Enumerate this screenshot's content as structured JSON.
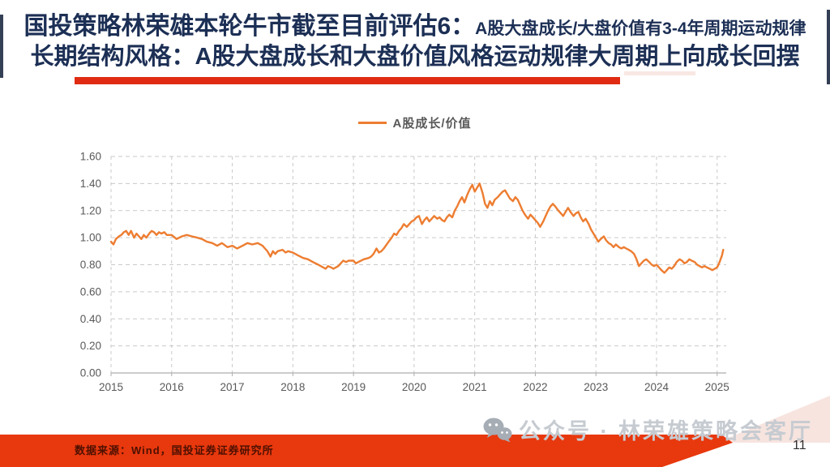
{
  "slide": {
    "title_line1_main": "国投策略林荣雄本轮牛市截至目前评估6：",
    "title_line1_sub": "A股大盘成长/大盘价值有3-4年周期运动规律",
    "title_line2": "长期结构风格：A股大盘成长和大盘价值风格运动规律大周期上向成长回摆",
    "footer_source": "数据来源：Wind，国投证券证券研究所",
    "watermark_text": "公众号 · 林荣雄策略会客厅",
    "page_number": "11",
    "colors": {
      "title_navy": "#1c2f55",
      "accent_red": "#E02B12",
      "footer_red": "#E8380D",
      "footer_pink": "#F7E4DF",
      "line_orange": "#ED7D31",
      "axis_text_gray": "#595959",
      "gridline_gray": "#C9C9C9",
      "axis_line_gray": "#ADADAD",
      "watermark_gray": "#c6cbd1"
    }
  },
  "chart_data": {
    "type": "line",
    "title": "",
    "xlabel": "",
    "ylabel": "",
    "legend_position": "top-center",
    "grid": "dashed-both-axes",
    "ylim": [
      0,
      1.6
    ],
    "xlim": [
      2015,
      2025.15
    ],
    "y_ticks": [
      0,
      0.2,
      0.4,
      0.6,
      0.8,
      1.0,
      1.2,
      1.4,
      1.6
    ],
    "y_tick_labels": [
      "0.00",
      "0.20",
      "0.40",
      "0.60",
      "0.80",
      "1.00",
      "1.20",
      "1.40",
      "1.60"
    ],
    "x_ticks": [
      2015,
      2016,
      2017,
      2018,
      2019,
      2020,
      2021,
      2022,
      2023,
      2024,
      2025
    ],
    "x_tick_labels": [
      "2015",
      "2016",
      "2017",
      "2018",
      "2019",
      "2020",
      "2021",
      "2022",
      "2023",
      "2024",
      "2025"
    ],
    "series": [
      {
        "name": "A股成长/价值",
        "color": "#ED7D31",
        "points": [
          [
            2015.0,
            0.97
          ],
          [
            2015.04,
            0.95
          ],
          [
            2015.08,
            0.99
          ],
          [
            2015.13,
            1.01
          ],
          [
            2015.17,
            1.02
          ],
          [
            2015.21,
            1.04
          ],
          [
            2015.25,
            1.05
          ],
          [
            2015.29,
            1.02
          ],
          [
            2015.33,
            1.05
          ],
          [
            2015.38,
            1.0
          ],
          [
            2015.42,
            1.03
          ],
          [
            2015.46,
            1.01
          ],
          [
            2015.5,
            0.99
          ],
          [
            2015.54,
            1.02
          ],
          [
            2015.58,
            1.0
          ],
          [
            2015.63,
            1.03
          ],
          [
            2015.67,
            1.05
          ],
          [
            2015.71,
            1.04
          ],
          [
            2015.75,
            1.02
          ],
          [
            2015.79,
            1.04
          ],
          [
            2015.83,
            1.03
          ],
          [
            2015.88,
            1.04
          ],
          [
            2015.92,
            1.02
          ],
          [
            2015.96,
            1.02
          ],
          [
            2016.0,
            1.02
          ],
          [
            2016.08,
            0.99
          ],
          [
            2016.17,
            1.01
          ],
          [
            2016.25,
            1.02
          ],
          [
            2016.33,
            1.01
          ],
          [
            2016.42,
            1.0
          ],
          [
            2016.5,
            0.99
          ],
          [
            2016.58,
            0.97
          ],
          [
            2016.67,
            0.96
          ],
          [
            2016.75,
            0.94
          ],
          [
            2016.83,
            0.96
          ],
          [
            2016.92,
            0.93
          ],
          [
            2017.0,
            0.94
          ],
          [
            2017.08,
            0.92
          ],
          [
            2017.17,
            0.94
          ],
          [
            2017.25,
            0.96
          ],
          [
            2017.33,
            0.95
          ],
          [
            2017.42,
            0.96
          ],
          [
            2017.5,
            0.94
          ],
          [
            2017.54,
            0.92
          ],
          [
            2017.58,
            0.9
          ],
          [
            2017.63,
            0.86
          ],
          [
            2017.67,
            0.9
          ],
          [
            2017.71,
            0.88
          ],
          [
            2017.75,
            0.9
          ],
          [
            2017.83,
            0.91
          ],
          [
            2017.88,
            0.89
          ],
          [
            2017.92,
            0.9
          ],
          [
            2018.0,
            0.89
          ],
          [
            2018.08,
            0.87
          ],
          [
            2018.17,
            0.85
          ],
          [
            2018.25,
            0.84
          ],
          [
            2018.33,
            0.82
          ],
          [
            2018.42,
            0.8
          ],
          [
            2018.46,
            0.79
          ],
          [
            2018.5,
            0.78
          ],
          [
            2018.54,
            0.77
          ],
          [
            2018.58,
            0.79
          ],
          [
            2018.63,
            0.78
          ],
          [
            2018.67,
            0.77
          ],
          [
            2018.71,
            0.78
          ],
          [
            2018.75,
            0.79
          ],
          [
            2018.79,
            0.81
          ],
          [
            2018.83,
            0.83
          ],
          [
            2018.88,
            0.82
          ],
          [
            2018.92,
            0.83
          ],
          [
            2019.0,
            0.83
          ],
          [
            2019.04,
            0.81
          ],
          [
            2019.08,
            0.82
          ],
          [
            2019.17,
            0.84
          ],
          [
            2019.25,
            0.85
          ],
          [
            2019.29,
            0.86
          ],
          [
            2019.33,
            0.88
          ],
          [
            2019.38,
            0.92
          ],
          [
            2019.42,
            0.89
          ],
          [
            2019.46,
            0.9
          ],
          [
            2019.5,
            0.92
          ],
          [
            2019.58,
            0.97
          ],
          [
            2019.63,
            1.0
          ],
          [
            2019.67,
            1.03
          ],
          [
            2019.71,
            1.02
          ],
          [
            2019.75,
            1.05
          ],
          [
            2019.79,
            1.07
          ],
          [
            2019.83,
            1.1
          ],
          [
            2019.88,
            1.08
          ],
          [
            2019.92,
            1.1
          ],
          [
            2019.96,
            1.12
          ],
          [
            2020.0,
            1.13
          ],
          [
            2020.04,
            1.15
          ],
          [
            2020.08,
            1.16
          ],
          [
            2020.13,
            1.1
          ],
          [
            2020.17,
            1.13
          ],
          [
            2020.21,
            1.15
          ],
          [
            2020.25,
            1.12
          ],
          [
            2020.29,
            1.14
          ],
          [
            2020.33,
            1.16
          ],
          [
            2020.38,
            1.14
          ],
          [
            2020.42,
            1.15
          ],
          [
            2020.46,
            1.13
          ],
          [
            2020.5,
            1.12
          ],
          [
            2020.54,
            1.15
          ],
          [
            2020.58,
            1.17
          ],
          [
            2020.63,
            1.15
          ],
          [
            2020.67,
            1.2
          ],
          [
            2020.71,
            1.23
          ],
          [
            2020.75,
            1.27
          ],
          [
            2020.79,
            1.3
          ],
          [
            2020.83,
            1.26
          ],
          [
            2020.88,
            1.32
          ],
          [
            2020.92,
            1.36
          ],
          [
            2020.96,
            1.39
          ],
          [
            2021.0,
            1.34
          ],
          [
            2021.04,
            1.37
          ],
          [
            2021.08,
            1.4
          ],
          [
            2021.13,
            1.33
          ],
          [
            2021.17,
            1.25
          ],
          [
            2021.21,
            1.22
          ],
          [
            2021.25,
            1.27
          ],
          [
            2021.29,
            1.24
          ],
          [
            2021.33,
            1.28
          ],
          [
            2021.38,
            1.3
          ],
          [
            2021.42,
            1.32
          ],
          [
            2021.46,
            1.34
          ],
          [
            2021.5,
            1.35
          ],
          [
            2021.54,
            1.32
          ],
          [
            2021.58,
            1.29
          ],
          [
            2021.63,
            1.27
          ],
          [
            2021.67,
            1.3
          ],
          [
            2021.71,
            1.28
          ],
          [
            2021.75,
            1.24
          ],
          [
            2021.79,
            1.2
          ],
          [
            2021.83,
            1.17
          ],
          [
            2021.88,
            1.14
          ],
          [
            2021.92,
            1.17
          ],
          [
            2021.96,
            1.15
          ],
          [
            2022.0,
            1.13
          ],
          [
            2022.04,
            1.11
          ],
          [
            2022.08,
            1.08
          ],
          [
            2022.13,
            1.12
          ],
          [
            2022.17,
            1.16
          ],
          [
            2022.21,
            1.2
          ],
          [
            2022.25,
            1.23
          ],
          [
            2022.29,
            1.25
          ],
          [
            2022.33,
            1.23
          ],
          [
            2022.38,
            1.2
          ],
          [
            2022.42,
            1.18
          ],
          [
            2022.46,
            1.16
          ],
          [
            2022.5,
            1.19
          ],
          [
            2022.54,
            1.22
          ],
          [
            2022.58,
            1.19
          ],
          [
            2022.63,
            1.16
          ],
          [
            2022.67,
            1.18
          ],
          [
            2022.71,
            1.19
          ],
          [
            2022.75,
            1.15
          ],
          [
            2022.79,
            1.12
          ],
          [
            2022.83,
            1.14
          ],
          [
            2022.88,
            1.1
          ],
          [
            2022.92,
            1.06
          ],
          [
            2022.96,
            1.03
          ],
          [
            2023.0,
            1.0
          ],
          [
            2023.04,
            0.97
          ],
          [
            2023.08,
            0.99
          ],
          [
            2023.13,
            1.01
          ],
          [
            2023.17,
            0.98
          ],
          [
            2023.21,
            0.96
          ],
          [
            2023.25,
            0.95
          ],
          [
            2023.29,
            0.93
          ],
          [
            2023.33,
            0.95
          ],
          [
            2023.38,
            0.93
          ],
          [
            2023.42,
            0.92
          ],
          [
            2023.46,
            0.93
          ],
          [
            2023.5,
            0.92
          ],
          [
            2023.54,
            0.91
          ],
          [
            2023.58,
            0.9
          ],
          [
            2023.63,
            0.88
          ],
          [
            2023.67,
            0.84
          ],
          [
            2023.71,
            0.79
          ],
          [
            2023.75,
            0.81
          ],
          [
            2023.79,
            0.83
          ],
          [
            2023.83,
            0.84
          ],
          [
            2023.88,
            0.82
          ],
          [
            2023.92,
            0.8
          ],
          [
            2023.96,
            0.79
          ],
          [
            2024.0,
            0.8
          ],
          [
            2024.04,
            0.78
          ],
          [
            2024.08,
            0.76
          ],
          [
            2024.13,
            0.74
          ],
          [
            2024.17,
            0.76
          ],
          [
            2024.21,
            0.78
          ],
          [
            2024.25,
            0.77
          ],
          [
            2024.29,
            0.79
          ],
          [
            2024.33,
            0.82
          ],
          [
            2024.38,
            0.84
          ],
          [
            2024.42,
            0.83
          ],
          [
            2024.46,
            0.81
          ],
          [
            2024.5,
            0.82
          ],
          [
            2024.54,
            0.84
          ],
          [
            2024.58,
            0.83
          ],
          [
            2024.63,
            0.82
          ],
          [
            2024.67,
            0.8
          ],
          [
            2024.71,
            0.79
          ],
          [
            2024.75,
            0.78
          ],
          [
            2024.79,
            0.79
          ],
          [
            2024.83,
            0.78
          ],
          [
            2024.88,
            0.77
          ],
          [
            2024.92,
            0.76
          ],
          [
            2024.96,
            0.77
          ],
          [
            2025.0,
            0.78
          ],
          [
            2025.04,
            0.82
          ],
          [
            2025.08,
            0.87
          ],
          [
            2025.1,
            0.91
          ]
        ]
      }
    ]
  }
}
